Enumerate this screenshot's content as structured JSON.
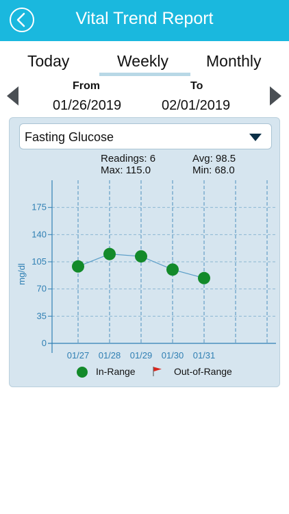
{
  "header": {
    "title": "Vital Trend Report",
    "back_icon": "chevron-left-icon"
  },
  "tabs": [
    {
      "label": "Today"
    },
    {
      "label": "Weekly",
      "selected": true
    },
    {
      "label": "Monthly"
    }
  ],
  "range": {
    "from_label": "From",
    "from_value": "01/26/2019",
    "to_label": "To",
    "to_value": "02/01/2019"
  },
  "dropdown": {
    "selected": "Fasting Glucose"
  },
  "stats": {
    "readings": "Readings: 6",
    "avg": "Avg:  98.5",
    "max": "Max: 115.0",
    "min": "Min:  68.0"
  },
  "legend": {
    "in_range": "In-Range",
    "out_of_range": "Out-of-Range"
  },
  "colors": {
    "accent": "#1ab8de",
    "in_range": "#138a2a",
    "out_of_range": "#d9261c",
    "axis": "#2f7fb3"
  },
  "chart_data": {
    "type": "line",
    "ylabel": "mg/dl",
    "yticks": [
      0,
      35,
      70,
      105,
      140,
      175
    ],
    "ylim": [
      0,
      210
    ],
    "categories": [
      "01/27",
      "01/28",
      "01/29",
      "01/30",
      "01/31"
    ],
    "series": [
      {
        "values": [
          99,
          115,
          112,
          95,
          84
        ]
      }
    ],
    "grid": true
  }
}
